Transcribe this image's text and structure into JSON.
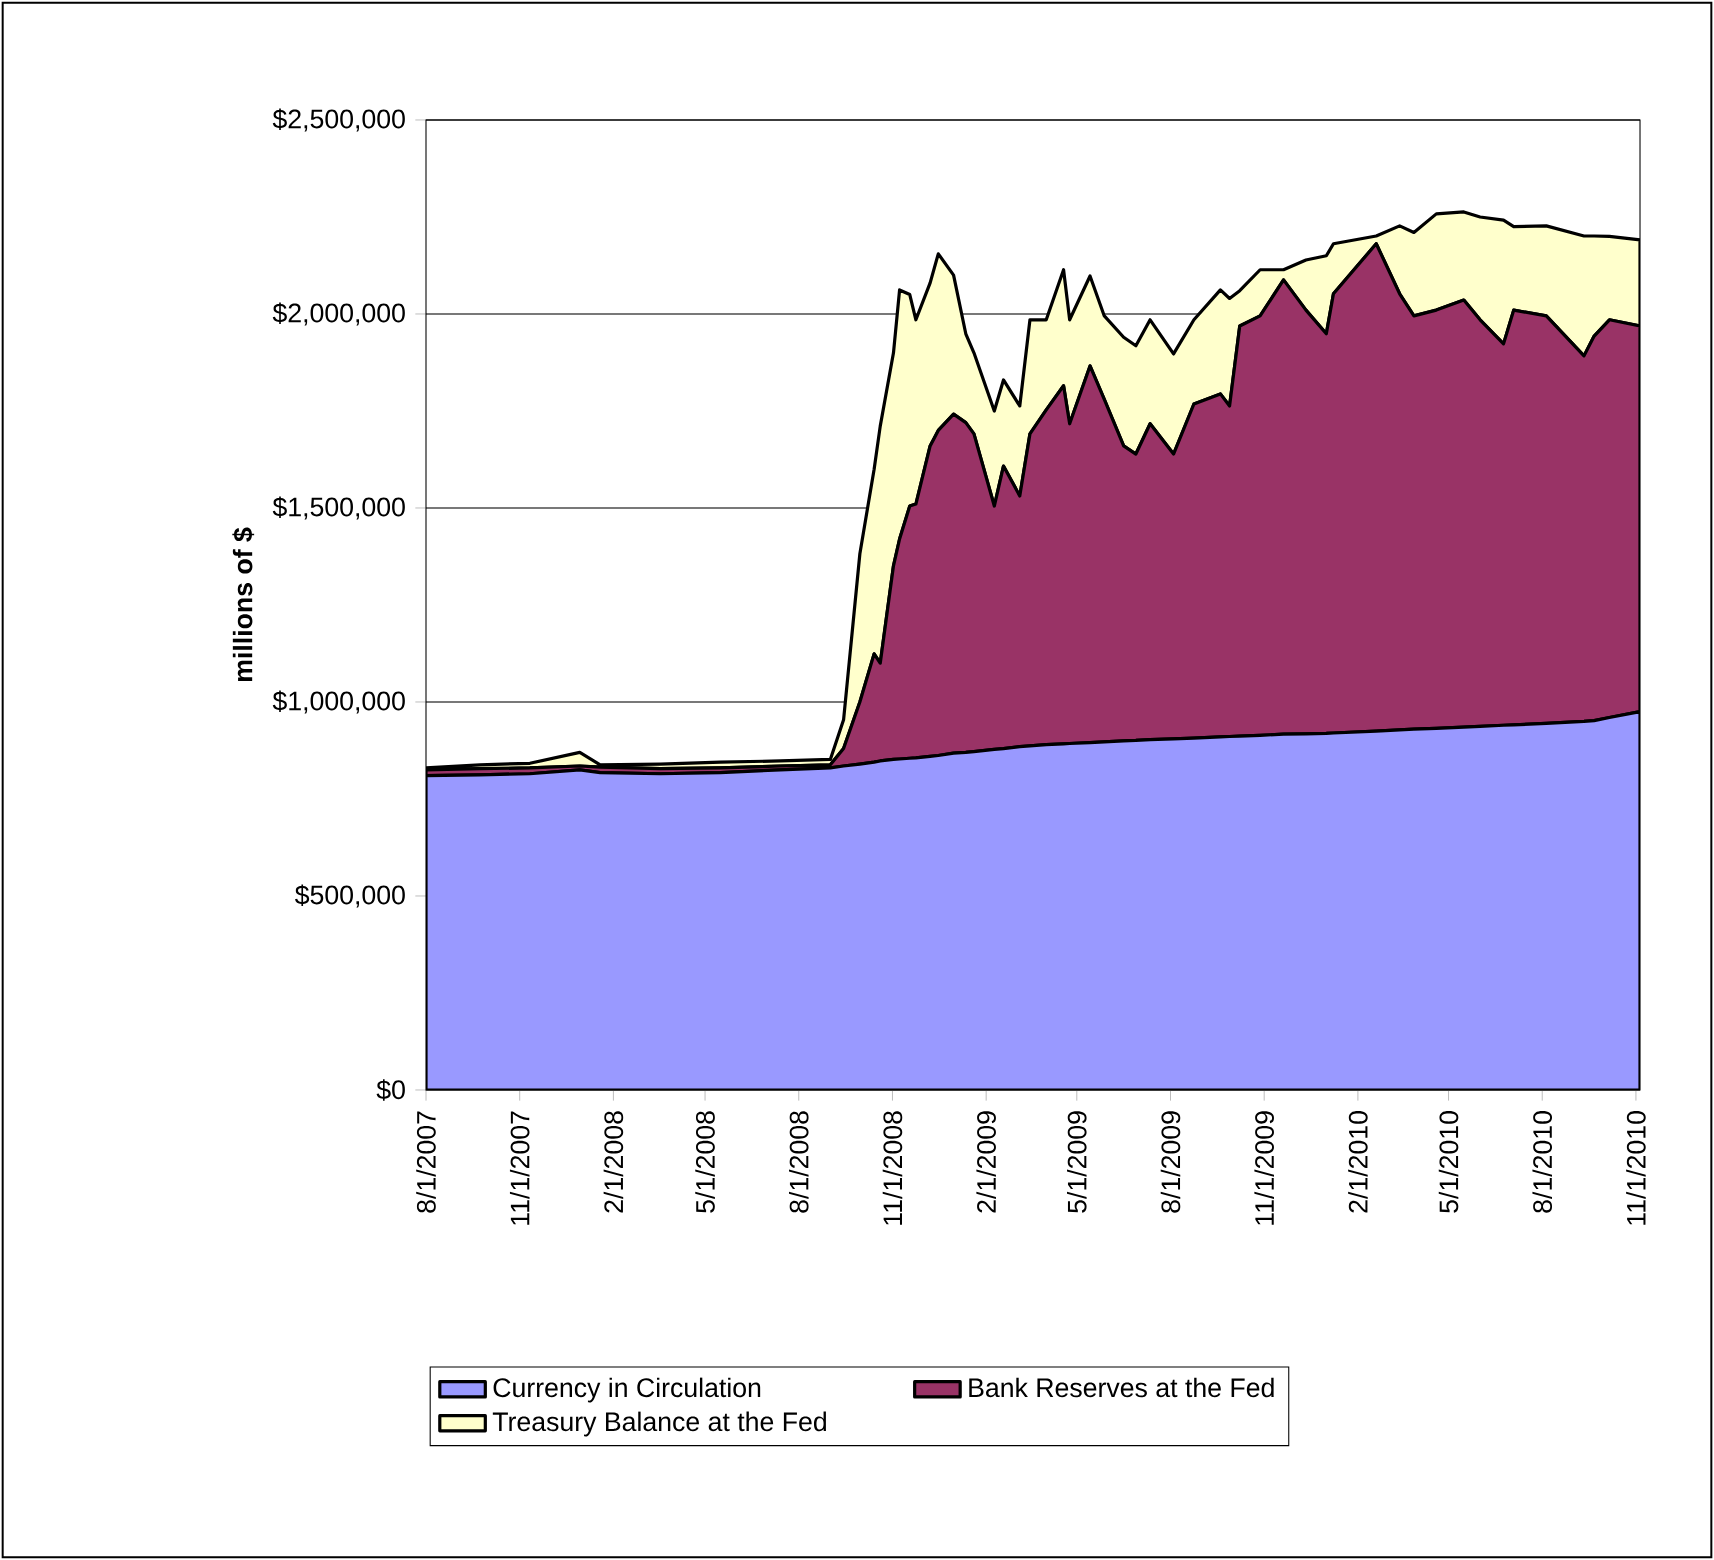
{
  "chart_data": {
    "type": "area",
    "stacked": true,
    "ylabel": "millions of $",
    "x": [
      "2007-08-01",
      "2007-09-23",
      "2007-11-11",
      "2007-12-30",
      "2008-01-19",
      "2008-03-18",
      "2008-05-16",
      "2008-07-14",
      "2008-09-01",
      "2008-09-14",
      "2008-09-30",
      "2008-10-14",
      "2008-10-20",
      "2008-11-02",
      "2008-11-08",
      "2008-11-18",
      "2008-11-24",
      "2008-12-08",
      "2008-12-16",
      "2008-12-31",
      "2009-01-12",
      "2009-01-20",
      "2009-02-09",
      "2009-02-18",
      "2009-03-06",
      "2009-03-16",
      "2009-04-01",
      "2009-04-18",
      "2009-04-24",
      "2009-05-14",
      "2009-05-28",
      "2009-06-16",
      "2009-06-28",
      "2009-07-12",
      "2009-08-04",
      "2009-08-24",
      "2009-09-19",
      "2009-09-28",
      "2009-10-08",
      "2009-10-28",
      "2009-11-20",
      "2009-12-12",
      "2010-01-01",
      "2010-01-08",
      "2010-02-19",
      "2010-03-14",
      "2010-03-28",
      "2010-04-19",
      "2010-05-16",
      "2010-06-01",
      "2010-06-24",
      "2010-07-04",
      "2010-08-05",
      "2010-09-11",
      "2010-09-21",
      "2010-10-06",
      "2010-11-05"
    ],
    "series": [
      {
        "name": "Currency in Circulation",
        "color": "#9999ff",
        "values": [
          810000,
          812000,
          815000,
          825000,
          818000,
          815000,
          818000,
          825000,
          830000,
          835000,
          840000,
          845000,
          848000,
          852000,
          853000,
          855000,
          856000,
          860000,
          862000,
          868000,
          870000,
          872000,
          878000,
          880000,
          885000,
          887000,
          890000,
          892000,
          893000,
          895000,
          897000,
          900000,
          901000,
          903000,
          905000,
          907000,
          910000,
          911000,
          912000,
          914000,
          917000,
          918000,
          919000,
          920000,
          925000,
          928000,
          930000,
          932000,
          935000,
          937000,
          940000,
          941000,
          945000,
          950000,
          952000,
          960000,
          975000
        ]
      },
      {
        "name": "Bank Reserves at the Fed",
        "color": "#993366",
        "values": [
          15000,
          16000,
          15000,
          10000,
          14000,
          13000,
          12000,
          10000,
          8000,
          45000,
          160000,
          279000,
          252000,
          499000,
          567000,
          650000,
          654000,
          800000,
          838000,
          874000,
          850000,
          819000,
          627000,
          728000,
          646000,
          804000,
          863000,
          923000,
          824000,
          971000,
          883000,
          760000,
          738000,
          814000,
          734000,
          861000,
          884000,
          852000,
          1057000,
          1081000,
          1171000,
          1092000,
          1030000,
          1132000,
          1256000,
          1124000,
          1065000,
          1078000,
          1101000,
          1048000,
          983000,
          1069000,
          1050000,
          942000,
          991000,
          1025000,
          994000
        ]
      },
      {
        "name": "Treasury Balance at the Fed",
        "color": "#ffffcc",
        "values": [
          5000,
          10000,
          12000,
          35000,
          6000,
          12000,
          15000,
          13000,
          14000,
          74000,
          382000,
          476000,
          611000,
          549000,
          642000,
          545000,
          475000,
          420000,
          455000,
          358000,
          229000,
          209000,
          245000,
          222000,
          232000,
          294000,
          232000,
          299000,
          268000,
          232000,
          215000,
          280000,
          279000,
          268000,
          258000,
          217000,
          268000,
          277000,
          91000,
          119000,
          26000,
          129000,
          201000,
          129000,
          20000,
          175000,
          215000,
          248000,
          227000,
          265000,
          319000,
          215000,
          232000,
          309000,
          258000,
          215000,
          222000
        ]
      }
    ],
    "xlim": [
      "2007-08-01",
      "2010-11-05"
    ],
    "xticks": [
      {
        "value": "2007-08-01",
        "label": "8/1/2007"
      },
      {
        "value": "2007-11-01",
        "label": "11/1/2007"
      },
      {
        "value": "2008-02-01",
        "label": "2/1/2008"
      },
      {
        "value": "2008-05-01",
        "label": "5/1/2008"
      },
      {
        "value": "2008-08-01",
        "label": "8/1/2008"
      },
      {
        "value": "2008-11-01",
        "label": "11/1/2008"
      },
      {
        "value": "2009-02-01",
        "label": "2/1/2009"
      },
      {
        "value": "2009-05-01",
        "label": "5/1/2009"
      },
      {
        "value": "2009-08-01",
        "label": "8/1/2009"
      },
      {
        "value": "2009-11-01",
        "label": "11/1/2009"
      },
      {
        "value": "2010-02-01",
        "label": "2/1/2010"
      },
      {
        "value": "2010-05-01",
        "label": "5/1/2010"
      },
      {
        "value": "2010-08-01",
        "label": "8/1/2010"
      },
      {
        "value": "2010-11-01",
        "label": "11/1/2010"
      }
    ],
    "ylim": [
      0,
      2500000
    ],
    "yticks": [
      {
        "value": 0,
        "label": "$0"
      },
      {
        "value": 500000,
        "label": "$500,000"
      },
      {
        "value": 1000000,
        "label": "$1,000,000"
      },
      {
        "value": 1500000,
        "label": "$1,500,000"
      },
      {
        "value": 2000000,
        "label": "$2,000,000"
      },
      {
        "value": 2500000,
        "label": "$2,500,000"
      }
    ],
    "grid": "y",
    "legend": "bottom"
  }
}
